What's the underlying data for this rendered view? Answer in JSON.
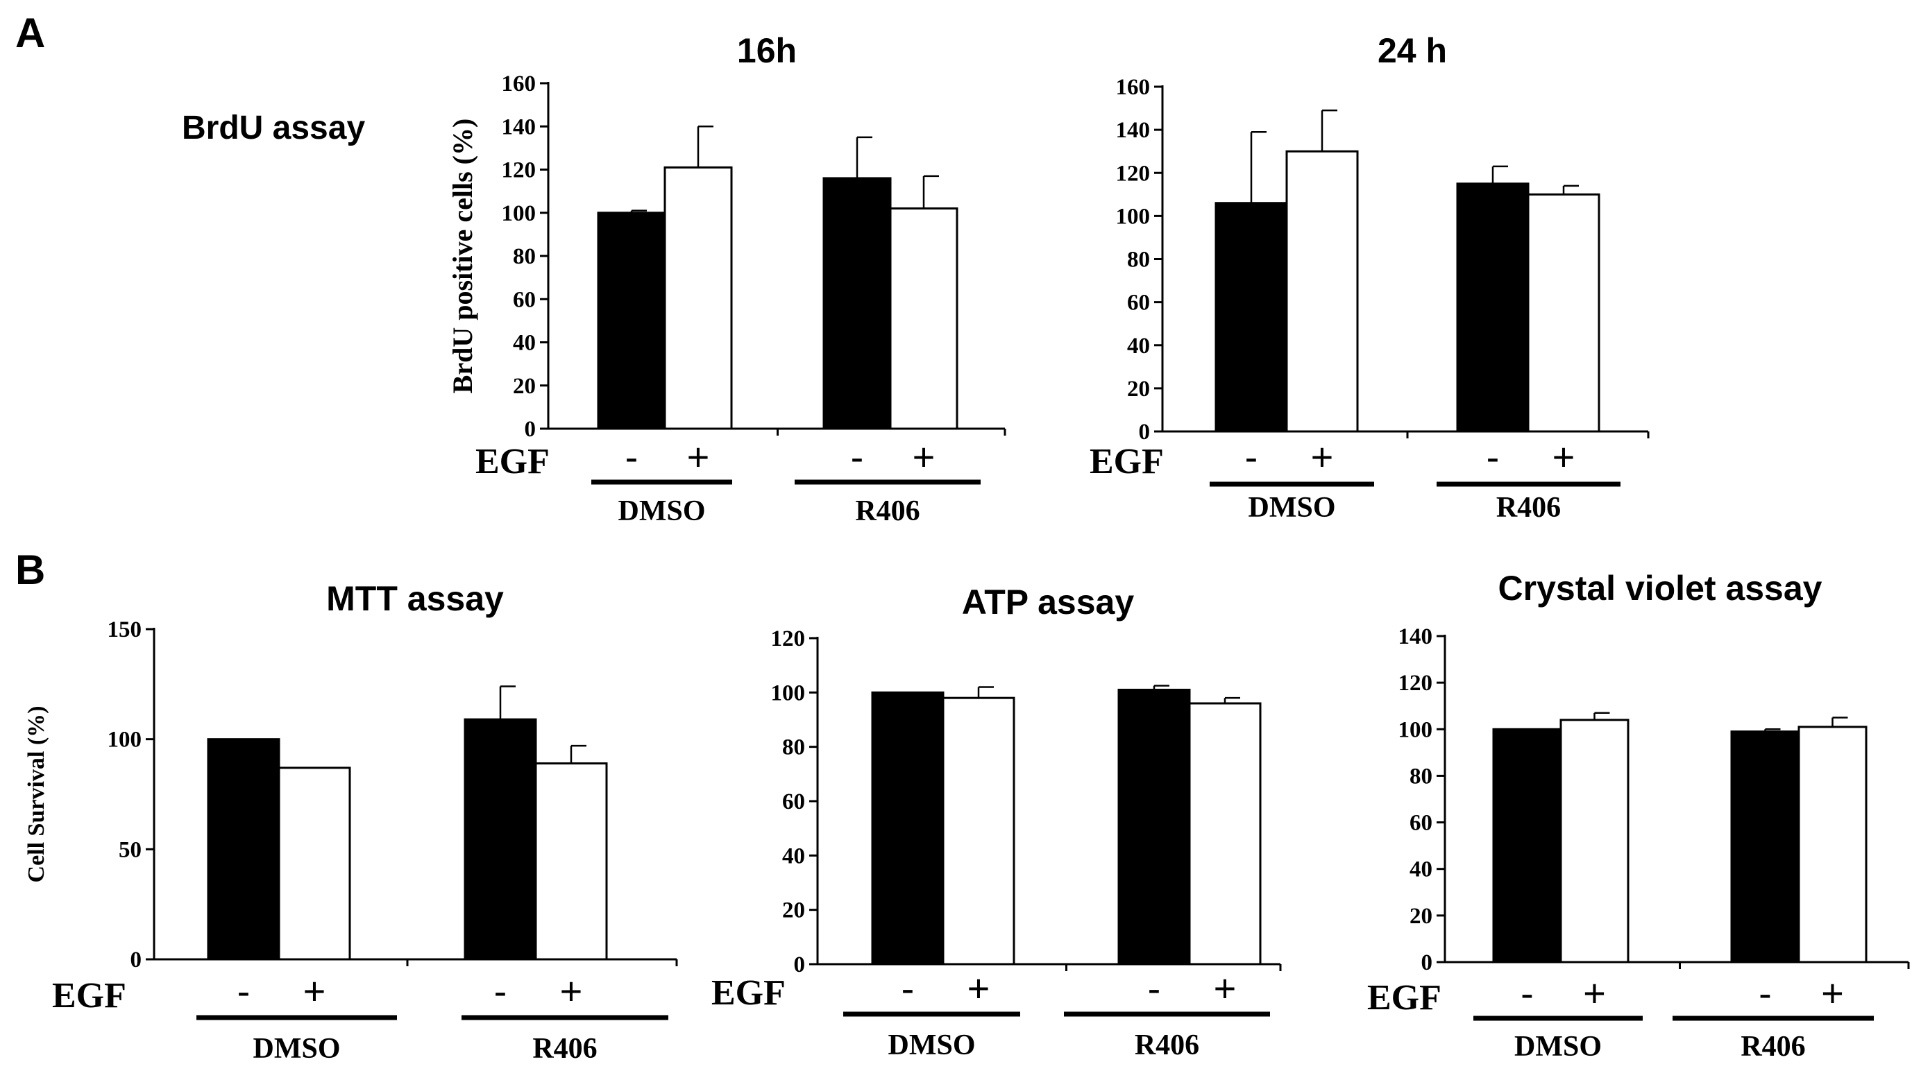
{
  "panels": [
    {
      "letter": "A"
    },
    {
      "letter": "B"
    }
  ],
  "side_label": "BrdU assay",
  "colors": {
    "control": "#000000",
    "egf": "#ffffff",
    "axis": "#000000"
  },
  "chart_data": [
    {
      "type": "bar",
      "title": "16h",
      "ylabel": "BrdU positive cells (%)",
      "ylim": [
        0,
        160
      ],
      "yticks": [
        0,
        20,
        40,
        60,
        80,
        100,
        120,
        140,
        160
      ],
      "treatment_label": "EGF",
      "treatment_levels": [
        "-",
        "+"
      ],
      "groups": [
        "DMSO",
        "R406"
      ],
      "series": [
        {
          "name": "EGF -",
          "values": [
            100,
            116
          ],
          "errors": [
            1,
            19
          ]
        },
        {
          "name": "EGF +",
          "values": [
            121,
            102
          ],
          "errors": [
            19,
            15
          ]
        }
      ]
    },
    {
      "type": "bar",
      "title": "24 h",
      "ylabel": "",
      "ylim": [
        0,
        160
      ],
      "yticks": [
        0,
        20,
        40,
        60,
        80,
        100,
        120,
        140,
        160
      ],
      "treatment_label": "EGF",
      "treatment_levels": [
        "-",
        "+"
      ],
      "groups": [
        "DMSO",
        "R406"
      ],
      "series": [
        {
          "name": "EGF -",
          "values": [
            106,
            115
          ],
          "errors": [
            33,
            8
          ]
        },
        {
          "name": "EGF +",
          "values": [
            130,
            110
          ],
          "errors": [
            19,
            4
          ]
        }
      ]
    },
    {
      "type": "bar",
      "title": "MTT assay",
      "ylabel": "Cell Survival (%)",
      "ylim": [
        0,
        150
      ],
      "yticks": [
        0,
        50,
        100,
        150
      ],
      "treatment_label": "EGF",
      "treatment_levels": [
        "-",
        "+"
      ],
      "groups": [
        "DMSO",
        "R406"
      ],
      "series": [
        {
          "name": "EGF -",
          "values": [
            100,
            109
          ],
          "errors": [
            0,
            15
          ]
        },
        {
          "name": "EGF +",
          "values": [
            87,
            89
          ],
          "errors": [
            0,
            8
          ]
        }
      ]
    },
    {
      "type": "bar",
      "title": "ATP assay",
      "ylabel": "",
      "ylim": [
        0,
        120
      ],
      "yticks": [
        0,
        20,
        40,
        60,
        80,
        100,
        120
      ],
      "treatment_label": "EGF",
      "treatment_levels": [
        "-",
        "+"
      ],
      "groups": [
        "DMSO",
        "R406"
      ],
      "series": [
        {
          "name": "EGF -",
          "values": [
            100,
            101
          ],
          "errors": [
            0,
            1.5
          ]
        },
        {
          "name": "EGF +",
          "values": [
            98,
            96
          ],
          "errors": [
            4,
            2
          ]
        }
      ]
    },
    {
      "type": "bar",
      "title": "Crystal violet assay",
      "ylabel": "",
      "ylim": [
        0,
        140
      ],
      "yticks": [
        0,
        20,
        40,
        60,
        80,
        100,
        120,
        140
      ],
      "treatment_label": "EGF",
      "treatment_levels": [
        "-",
        "+"
      ],
      "groups": [
        "DMSO",
        "R406"
      ],
      "series": [
        {
          "name": "EGF -",
          "values": [
            100,
            99
          ],
          "errors": [
            0,
            1
          ]
        },
        {
          "name": "EGF +",
          "values": [
            104,
            101
          ],
          "errors": [
            3,
            4
          ]
        }
      ]
    }
  ]
}
